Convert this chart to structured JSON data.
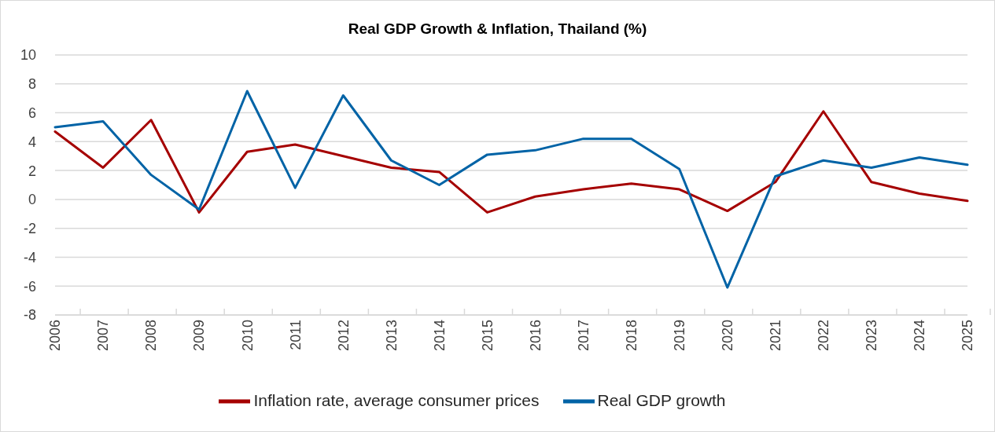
{
  "chart_data": {
    "type": "line",
    "title": "Real GDP Growth & Inflation, Thailand (%)",
    "categories": [
      "2006",
      "2007",
      "2008",
      "2009",
      "2010",
      "2011",
      "2012",
      "2013",
      "2014",
      "2015",
      "2016",
      "2017",
      "2018",
      "2019",
      "2020",
      "2021",
      "2022",
      "2023",
      "2024",
      "2025"
    ],
    "series": [
      {
        "name": "Inflation rate, average consumer prices",
        "color": "#a50000",
        "values": [
          4.7,
          2.2,
          5.5,
          -0.9,
          3.3,
          3.8,
          3.0,
          2.2,
          1.9,
          -0.9,
          0.2,
          0.7,
          1.1,
          0.7,
          -0.8,
          1.2,
          6.1,
          1.2,
          0.4,
          -0.1
        ]
      },
      {
        "name": "Real GDP growth",
        "color": "#0063a6",
        "values": [
          5.0,
          5.4,
          1.7,
          -0.7,
          7.5,
          0.8,
          7.2,
          2.7,
          1.0,
          3.1,
          3.4,
          4.2,
          4.2,
          2.1,
          -6.1,
          1.6,
          2.7,
          2.2,
          2.9,
          2.4
        ]
      }
    ],
    "ylim": [
      -8,
      10
    ],
    "yticks": [
      -8,
      -6,
      -4,
      -2,
      0,
      2,
      4,
      6,
      8,
      10
    ],
    "grid": "y",
    "legend": "bottom",
    "marker": "none",
    "line_style": "solid"
  }
}
